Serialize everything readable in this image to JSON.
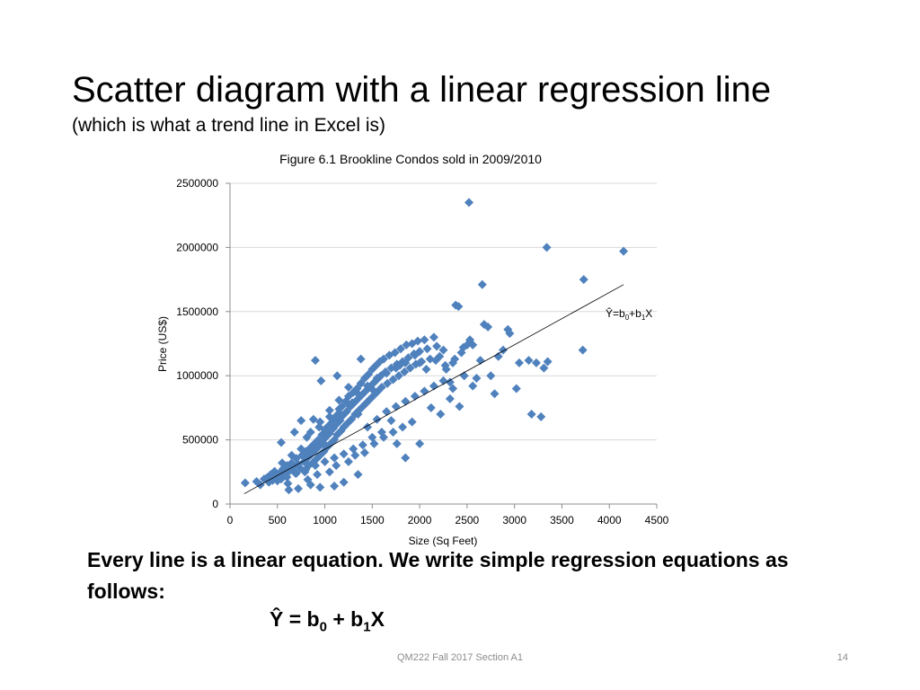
{
  "slide": {
    "title": "Scatter diagram with a linear regression line",
    "subtitle": "(which is what a trend line in Excel is)",
    "body": "Every line is a linear equation.  We write simple regression equations as follows:",
    "equation": {
      "y": "Ŷ",
      "eq": " = b",
      "s0": "0",
      "plus": " +  b",
      "s1": "1",
      "x": "X"
    },
    "footer": "QM222 Fall 2017 Section A1",
    "page_number": "14"
  },
  "colors": {
    "marker": "#4f81bd",
    "axis": "#8c8c8c",
    "grid": "#d9d9d9",
    "line": "#000000"
  },
  "chart_data": {
    "type": "scatter",
    "title": "Figure 6.1 Brookline Condos sold in 2009/2010",
    "xlabel": "Size (Sq Feet)",
    "ylabel": "Price (US$)",
    "xlim": [
      0,
      4500
    ],
    "ylim": [
      0,
      2500000
    ],
    "xticks": [
      0,
      500,
      1000,
      1500,
      2000,
      2500,
      3000,
      3500,
      4000,
      4500
    ],
    "yticks": [
      0,
      500000,
      1000000,
      1500000,
      2000000,
      2500000
    ],
    "grid": "horizontal",
    "marker": "diamond",
    "trendline": {
      "x": [
        150,
        4150
      ],
      "y": [
        80000,
        1710000
      ],
      "label": {
        "yhat": "Ŷ",
        "eq": "=b",
        "s0": "0",
        "plus": "+b",
        "s1": "1",
        "x": "X"
      }
    },
    "points": [
      [
        160,
        165000
      ],
      [
        280,
        175000
      ],
      [
        320,
        150000
      ],
      [
        360,
        195000
      ],
      [
        390,
        205000
      ],
      [
        410,
        170000
      ],
      [
        430,
        230000
      ],
      [
        450,
        185000
      ],
      [
        470,
        255000
      ],
      [
        500,
        215000
      ],
      [
        520,
        240000
      ],
      [
        540,
        195000
      ],
      [
        560,
        275000
      ],
      [
        580,
        230000
      ],
      [
        600,
        300000
      ],
      [
        610,
        160000
      ],
      [
        630,
        260000
      ],
      [
        650,
        320000
      ],
      [
        670,
        290000
      ],
      [
        690,
        240000
      ],
      [
        700,
        355000
      ],
      [
        720,
        310000
      ],
      [
        740,
        280000
      ],
      [
        760,
        380000
      ],
      [
        780,
        330000
      ],
      [
        790,
        250000
      ],
      [
        800,
        410000
      ],
      [
        820,
        360000
      ],
      [
        830,
        300000
      ],
      [
        850,
        440000
      ],
      [
        860,
        390000
      ],
      [
        870,
        320000
      ],
      [
        890,
        470000
      ],
      [
        900,
        420000
      ],
      [
        910,
        350000
      ],
      [
        930,
        500000
      ],
      [
        940,
        450000
      ],
      [
        950,
        380000
      ],
      [
        970,
        540000
      ],
      [
        980,
        480000
      ],
      [
        990,
        410000
      ],
      [
        1000,
        580000
      ],
      [
        1010,
        520000
      ],
      [
        1020,
        440000
      ],
      [
        1040,
        610000
      ],
      [
        1050,
        550000
      ],
      [
        1060,
        470000
      ],
      [
        1080,
        640000
      ],
      [
        1090,
        590000
      ],
      [
        1100,
        500000
      ],
      [
        1110,
        680000
      ],
      [
        1120,
        620000
      ],
      [
        1130,
        540000
      ],
      [
        1150,
        710000
      ],
      [
        1160,
        650000
      ],
      [
        1170,
        570000
      ],
      [
        1180,
        760000
      ],
      [
        1190,
        690000
      ],
      [
        1200,
        600000
      ],
      [
        1220,
        800000
      ],
      [
        1230,
        720000
      ],
      [
        1240,
        630000
      ],
      [
        1250,
        840000
      ],
      [
        1270,
        760000
      ],
      [
        1280,
        660000
      ],
      [
        1300,
        870000
      ],
      [
        1310,
        790000
      ],
      [
        1320,
        700000
      ],
      [
        1340,
        900000
      ],
      [
        1350,
        820000
      ],
      [
        1360,
        730000
      ],
      [
        1380,
        940000
      ],
      [
        1390,
        850000
      ],
      [
        1400,
        760000
      ],
      [
        1420,
        980000
      ],
      [
        1430,
        880000
      ],
      [
        1440,
        790000
      ],
      [
        1460,
        1010000
      ],
      [
        1470,
        910000
      ],
      [
        1480,
        820000
      ],
      [
        1500,
        1050000
      ],
      [
        1510,
        940000
      ],
      [
        1520,
        850000
      ],
      [
        1540,
        1080000
      ],
      [
        1550,
        970000
      ],
      [
        1560,
        880000
      ],
      [
        1580,
        1110000
      ],
      [
        1590,
        1000000
      ],
      [
        1600,
        910000
      ],
      [
        1620,
        1130000
      ],
      [
        1640,
        1030000
      ],
      [
        1660,
        940000
      ],
      [
        1680,
        1160000
      ],
      [
        1700,
        1060000
      ],
      [
        1720,
        970000
      ],
      [
        1740,
        1180000
      ],
      [
        1760,
        1090000
      ],
      [
        1780,
        1000000
      ],
      [
        1800,
        1210000
      ],
      [
        1820,
        1110000
      ],
      [
        1840,
        1030000
      ],
      [
        1860,
        1240000
      ],
      [
        1880,
        1140000
      ],
      [
        1900,
        1060000
      ],
      [
        1920,
        1250000
      ],
      [
        1940,
        1170000
      ],
      [
        1960,
        1090000
      ],
      [
        1980,
        1270000
      ],
      [
        2000,
        1190000
      ],
      [
        2020,
        1110000
      ],
      [
        2050,
        1280000
      ],
      [
        2080,
        1210000
      ],
      [
        2110,
        1130000
      ],
      [
        2150,
        1300000
      ],
      [
        2180,
        1230000
      ],
      [
        2210,
        1150000
      ],
      [
        2250,
        1200000
      ],
      [
        2280,
        1050000
      ],
      [
        2320,
        950000
      ],
      [
        2350,
        1100000
      ],
      [
        2380,
        1550000
      ],
      [
        2410,
        1540000
      ],
      [
        2440,
        1180000
      ],
      [
        2470,
        1000000
      ],
      [
        2500,
        1240000
      ],
      [
        2530,
        1280000
      ],
      [
        2560,
        920000
      ],
      [
        2600,
        980000
      ],
      [
        2640,
        1120000
      ],
      [
        2660,
        1710000
      ],
      [
        2680,
        1400000
      ],
      [
        2720,
        1380000
      ],
      [
        2750,
        1000000
      ],
      [
        2790,
        860000
      ],
      [
        2830,
        1150000
      ],
      [
        2880,
        1200000
      ],
      [
        2930,
        1360000
      ],
      [
        2950,
        1330000
      ],
      [
        3020,
        900000
      ],
      [
        3050,
        1100000
      ],
      [
        3150,
        1120000
      ],
      [
        3180,
        700000
      ],
      [
        3230,
        1100000
      ],
      [
        3280,
        680000
      ],
      [
        3310,
        1060000
      ],
      [
        3350,
        1110000
      ],
      [
        3720,
        1200000
      ],
      [
        3730,
        1750000
      ],
      [
        3340,
        2000000
      ],
      [
        4150,
        1970000
      ],
      [
        2520,
        2350000
      ],
      [
        900,
        1120000
      ],
      [
        960,
        960000
      ],
      [
        1380,
        1130000
      ],
      [
        2000,
        1100000
      ],
      [
        1790,
        1080000
      ],
      [
        1520,
        880000
      ],
      [
        1290,
        790000
      ],
      [
        1130,
        1000000
      ],
      [
        680,
        560000
      ],
      [
        540,
        480000
      ],
      [
        750,
        650000
      ],
      [
        810,
        520000
      ],
      [
        880,
        660000
      ],
      [
        940,
        600000
      ],
      [
        1050,
        730000
      ],
      [
        1150,
        810000
      ],
      [
        1250,
        910000
      ],
      [
        1350,
        700000
      ],
      [
        1450,
        600000
      ],
      [
        1550,
        660000
      ],
      [
        1650,
        720000
      ],
      [
        1750,
        760000
      ],
      [
        1850,
        800000
      ],
      [
        1950,
        840000
      ],
      [
        2050,
        880000
      ],
      [
        2150,
        920000
      ],
      [
        2250,
        960000
      ],
      [
        2350,
        900000
      ],
      [
        1700,
        650000
      ],
      [
        1600,
        560000
      ],
      [
        1500,
        520000
      ],
      [
        1400,
        460000
      ],
      [
        1300,
        430000
      ],
      [
        1200,
        390000
      ],
      [
        1100,
        360000
      ],
      [
        1000,
        330000
      ],
      [
        900,
        300000
      ],
      [
        800,
        270000
      ],
      [
        700,
        240000
      ],
      [
        600,
        210000
      ],
      [
        500,
        180000
      ],
      [
        450,
        220000
      ],
      [
        550,
        320000
      ],
      [
        650,
        380000
      ],
      [
        750,
        430000
      ],
      [
        850,
        560000
      ],
      [
        950,
        640000
      ],
      [
        1050,
        680000
      ],
      [
        1150,
        740000
      ],
      [
        1250,
        780000
      ],
      [
        1350,
        860000
      ],
      [
        1450,
        920000
      ],
      [
        1550,
        980000
      ],
      [
        1650,
        1020000
      ],
      [
        1750,
        1060000
      ],
      [
        1850,
        1100000
      ],
      [
        1950,
        1160000
      ],
      [
        2070,
        1050000
      ],
      [
        2170,
        1120000
      ],
      [
        2270,
        1080000
      ],
      [
        2370,
        1130000
      ],
      [
        2460,
        1220000
      ],
      [
        2560,
        1240000
      ],
      [
        1760,
        470000
      ],
      [
        2000,
        470000
      ],
      [
        1850,
        360000
      ],
      [
        1350,
        230000
      ],
      [
        1200,
        170000
      ],
      [
        1100,
        140000
      ],
      [
        950,
        130000
      ],
      [
        850,
        150000
      ],
      [
        720,
        120000
      ],
      [
        620,
        110000
      ],
      [
        1050,
        250000
      ],
      [
        1250,
        330000
      ],
      [
        1420,
        400000
      ],
      [
        1620,
        520000
      ],
      [
        1820,
        600000
      ],
      [
        2120,
        750000
      ],
      [
        2320,
        820000
      ],
      [
        2420,
        760000
      ],
      [
        2220,
        700000
      ],
      [
        1920,
        640000
      ],
      [
        1720,
        560000
      ],
      [
        1520,
        470000
      ],
      [
        1320,
        380000
      ],
      [
        1120,
        300000
      ],
      [
        920,
        230000
      ],
      [
        820,
        190000
      ]
    ]
  }
}
